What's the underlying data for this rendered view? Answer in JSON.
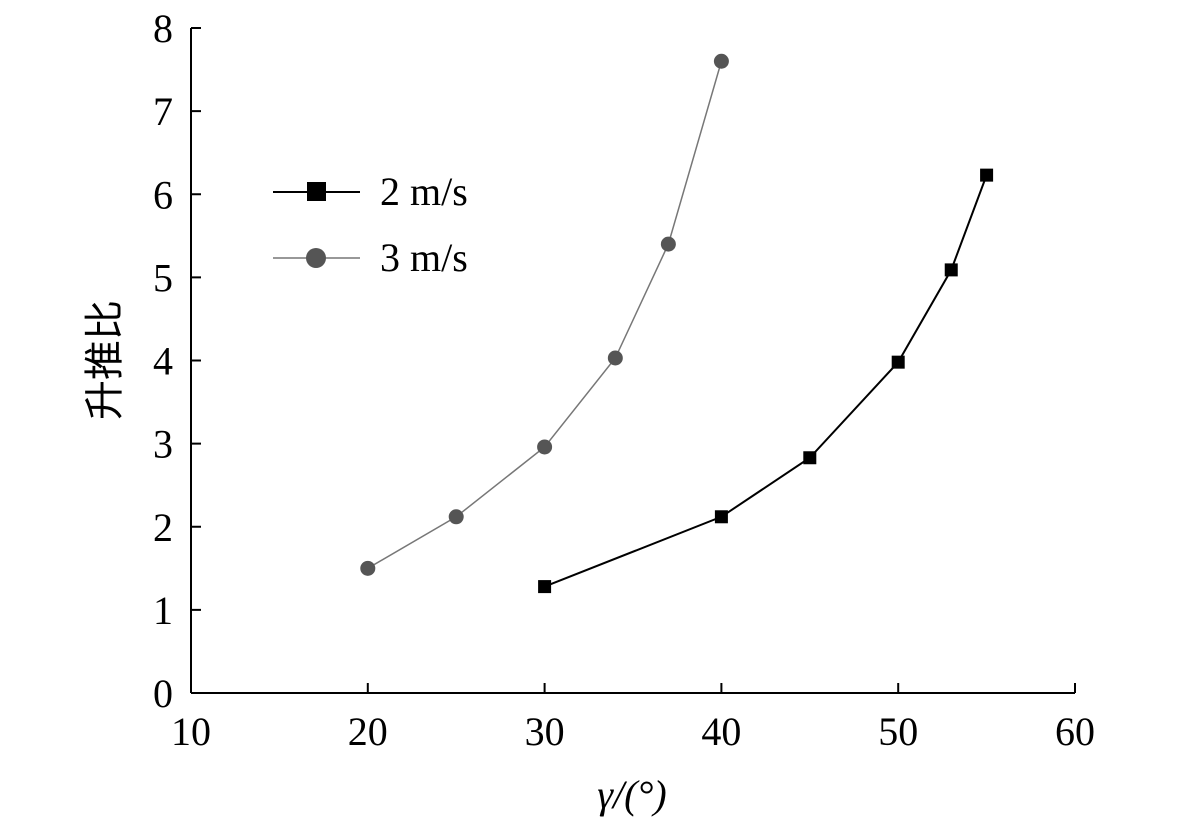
{
  "chart_data": {
    "type": "line",
    "title": "",
    "xlabel": "γ/(°)",
    "ylabel": "升推比",
    "xlim": [
      10,
      60
    ],
    "ylim": [
      0,
      8
    ],
    "xticks": [
      "10",
      "20",
      "30",
      "40",
      "50",
      "60"
    ],
    "yticks": [
      "0",
      "1",
      "2",
      "3",
      "4",
      "5",
      "6",
      "7",
      "8"
    ],
    "grid": false,
    "legend_position": "upper-left",
    "series": [
      {
        "name": "2 m/s",
        "marker": "square",
        "color": "#000000",
        "x": [
          30,
          40,
          45,
          50,
          53,
          55
        ],
        "y": [
          1.28,
          2.12,
          2.83,
          3.98,
          5.09,
          6.23
        ]
      },
      {
        "name": "3 m/s",
        "marker": "circle",
        "color": "#555555",
        "x": [
          20,
          25,
          30,
          34,
          37,
          40
        ],
        "y": [
          1.5,
          2.12,
          2.96,
          4.03,
          5.4,
          7.6
        ]
      }
    ]
  }
}
